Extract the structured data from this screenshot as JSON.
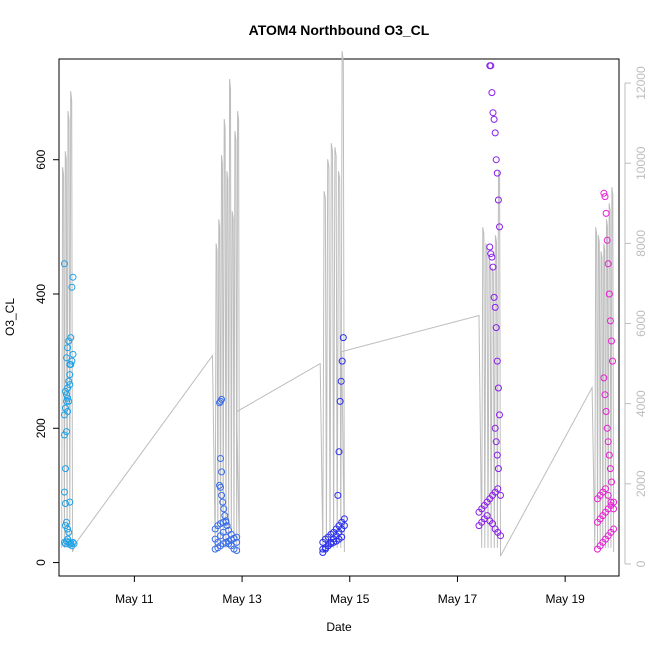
{
  "chart_data": {
    "type": "scatter",
    "title": "ATOM4 Northbound O3_CL",
    "xlabel": "Date",
    "ylabel": "O3_CL",
    "x_range_days": [
      9.6,
      20.0
    ],
    "x_ticks": [
      {
        "day": 11,
        "label": "May 11"
      },
      {
        "day": 13,
        "label": "May 13"
      },
      {
        "day": 15,
        "label": "May 15"
      },
      {
        "day": 17,
        "label": "May 17"
      },
      {
        "day": 19,
        "label": "May 19"
      }
    ],
    "ylim": [
      -20,
      750
    ],
    "y_ticks": [
      0,
      200,
      400,
      600
    ],
    "y_tick_labels": [
      "0",
      "200",
      "400",
      "600"
    ],
    "right_axis": {
      "ylim": [
        -300,
        12600
      ],
      "ticks": [
        0,
        2000,
        4000,
        6000,
        8000,
        10000,
        12000
      ],
      "tick_labels": [
        "0",
        "2000",
        "4000",
        "6000",
        "8000",
        "10000",
        "12000"
      ],
      "color": "#bdbdbd"
    },
    "grid": false,
    "altitude_trace_color": "#bdbdbd",
    "series": [
      {
        "color": "#1fa2e8",
        "x": [
          9.7,
          9.72,
          9.74,
          9.76,
          9.78,
          9.8,
          9.82,
          9.84,
          9.86,
          9.88,
          9.7,
          9.72,
          9.74,
          9.76,
          9.78,
          9.8,
          9.82,
          9.84,
          9.86,
          9.7,
          9.72,
          9.74,
          9.76,
          9.78,
          9.8,
          9.82,
          9.84,
          9.86,
          9.7,
          9.72,
          9.74,
          9.76,
          9.7,
          9.72,
          9.74,
          9.76,
          9.78,
          9.8,
          9.72,
          9.74,
          9.76,
          9.78,
          9.8
        ],
        "y": [
          30,
          28,
          32,
          35,
          30,
          27,
          29,
          25,
          30,
          28,
          190,
          230,
          250,
          260,
          270,
          280,
          295,
          300,
          310,
          105,
          140,
          195,
          225,
          240,
          265,
          335,
          410,
          425,
          445,
          255,
          240,
          245,
          220,
          55,
          60,
          50,
          45,
          90,
          88,
          305,
          320,
          330,
          295
        ]
      },
      {
        "color": "#3a6ee8",
        "x": [
          12.5,
          12.55,
          12.6,
          12.65,
          12.7,
          12.75,
          12.8,
          12.85,
          12.9,
          12.5,
          12.55,
          12.6,
          12.65,
          12.7,
          12.75,
          12.8,
          12.85,
          12.9,
          12.5,
          12.55,
          12.6,
          12.65,
          12.7,
          12.75,
          12.8,
          12.85,
          12.9,
          12.6,
          12.62,
          12.58,
          12.6,
          12.62,
          12.58,
          12.6,
          12.62,
          12.64,
          12.66,
          12.68,
          12.7,
          12.72
        ],
        "y": [
          35,
          30,
          40,
          45,
          38,
          28,
          25,
          20,
          18,
          50,
          55,
          58,
          60,
          62,
          48,
          42,
          36,
          30,
          20,
          22,
          25,
          28,
          30,
          32,
          34,
          36,
          38,
          240,
          243,
          238,
          155,
          135,
          115,
          112,
          100,
          90,
          80,
          70,
          60,
          55
        ]
      },
      {
        "color": "#2a2ff0",
        "x": [
          14.5,
          14.55,
          14.6,
          14.65,
          14.7,
          14.75,
          14.8,
          14.85,
          14.9,
          14.5,
          14.55,
          14.6,
          14.65,
          14.7,
          14.75,
          14.8,
          14.85,
          14.9,
          14.5,
          14.55,
          14.6,
          14.65,
          14.7,
          14.75,
          14.8,
          14.85,
          14.88,
          14.86,
          14.84,
          14.82,
          14.8,
          14.78
        ],
        "y": [
          15,
          20,
          25,
          30,
          35,
          40,
          45,
          50,
          55,
          30,
          35,
          38,
          42,
          45,
          50,
          55,
          60,
          65,
          20,
          22,
          25,
          28,
          30,
          32,
          35,
          38,
          335,
          300,
          270,
          240,
          165,
          100
        ]
      },
      {
        "color": "#8a1fe8",
        "x": [
          17.4,
          17.45,
          17.5,
          17.55,
          17.6,
          17.65,
          17.7,
          17.75,
          17.8,
          17.4,
          17.45,
          17.5,
          17.55,
          17.6,
          17.65,
          17.7,
          17.75,
          17.8,
          17.6,
          17.62,
          17.64,
          17.66,
          17.68,
          17.7,
          17.72,
          17.74,
          17.76,
          17.78,
          17.6,
          17.62,
          17.64,
          17.66,
          17.68,
          17.7,
          17.72,
          17.74,
          17.76,
          17.78,
          17.7,
          17.72,
          17.74,
          17.76
        ],
        "y": [
          55,
          60,
          65,
          70,
          62,
          58,
          50,
          45,
          40,
          75,
          80,
          85,
          90,
          95,
          100,
          105,
          110,
          100,
          740,
          740,
          700,
          670,
          660,
          640,
          600,
          580,
          540,
          500,
          470,
          460,
          455,
          440,
          395,
          380,
          350,
          300,
          260,
          220,
          200,
          180,
          160,
          140
        ]
      },
      {
        "color": "#e81fd4",
        "x": [
          19.6,
          19.65,
          19.7,
          19.75,
          19.8,
          19.85,
          19.9,
          19.6,
          19.65,
          19.7,
          19.75,
          19.8,
          19.85,
          19.9,
          19.6,
          19.65,
          19.7,
          19.75,
          19.8,
          19.85,
          19.9,
          19.72,
          19.74,
          19.76,
          19.78,
          19.8,
          19.82,
          19.84,
          19.86,
          19.88,
          19.72,
          19.74,
          19.76,
          19.78,
          19.8,
          19.82,
          19.84,
          19.86
        ],
        "y": [
          60,
          65,
          70,
          75,
          80,
          85,
          90,
          95,
          100,
          105,
          110,
          100,
          90,
          80,
          20,
          25,
          30,
          35,
          40,
          45,
          50,
          550,
          545,
          520,
          480,
          445,
          400,
          360,
          330,
          300,
          275,
          250,
          225,
          200,
          180,
          160,
          140,
          120
        ]
      }
    ]
  }
}
